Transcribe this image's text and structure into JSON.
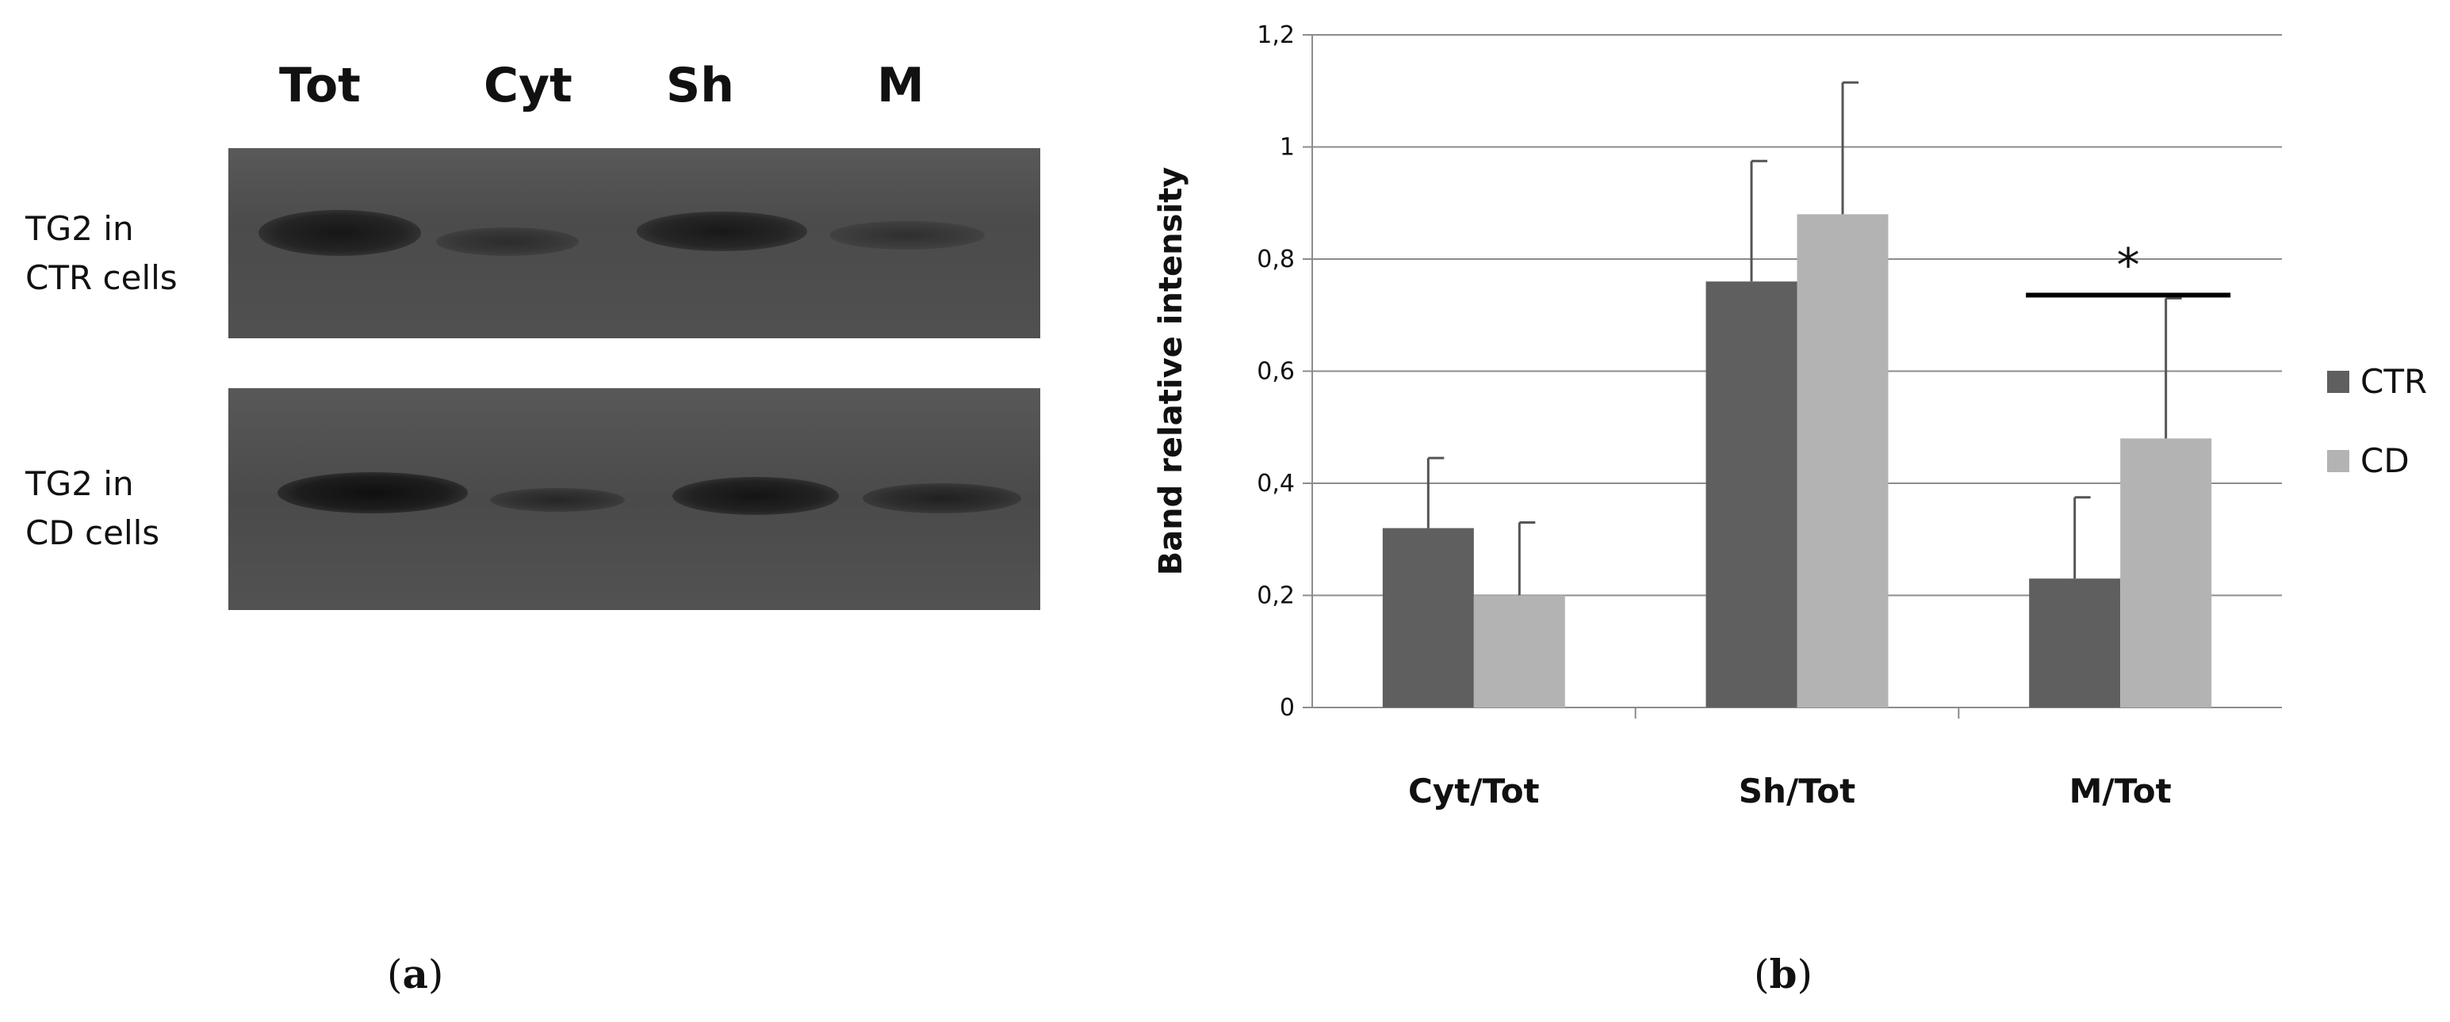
{
  "blot": {
    "lanes": [
      "Tot",
      "Cyt",
      "Sh",
      "M"
    ],
    "rows": [
      {
        "line1": "TG2 in",
        "line2": "CTR cells"
      },
      {
        "line1": "TG2 in",
        "line2": "CD cells"
      }
    ]
  },
  "panel_labels": {
    "a": "a",
    "b": "b"
  },
  "chart_data": {
    "type": "bar",
    "categories": [
      "Cyt/Tot",
      "Sh/Tot",
      "M/Tot"
    ],
    "series": [
      {
        "name": "CTR",
        "values": [
          0.32,
          0.76,
          0.23
        ],
        "errors": [
          0.125,
          0.215,
          0.145
        ],
        "color": "#5f5f5f"
      },
      {
        "name": "CD",
        "values": [
          0.2,
          0.88,
          0.48
        ],
        "errors": [
          0.13,
          0.235,
          0.25
        ],
        "color": "#b3b3b3"
      }
    ],
    "ylabel": "Band relative intensity",
    "ylim": [
      0,
      1.2
    ],
    "yticks": [
      "0",
      "0,2",
      "0,4",
      "0,6",
      "0,8",
      "1",
      "1,2"
    ],
    "grid": true,
    "legend_position": "right",
    "annotation": {
      "text": "*",
      "category": "M/Tot"
    }
  }
}
